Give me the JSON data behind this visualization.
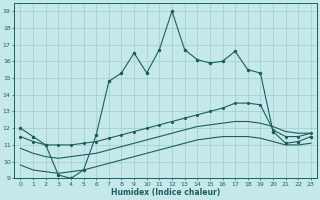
{
  "xlabel": "Humidex (Indice chaleur)",
  "xlim": [
    -0.5,
    23.5
  ],
  "ylim": [
    9,
    19.5
  ],
  "yticks": [
    9,
    10,
    11,
    12,
    13,
    14,
    15,
    16,
    17,
    18,
    19
  ],
  "xticks": [
    0,
    1,
    2,
    3,
    4,
    5,
    6,
    7,
    8,
    9,
    10,
    11,
    12,
    13,
    14,
    15,
    16,
    17,
    18,
    19,
    20,
    21,
    22,
    23
  ],
  "bg_color": "#c5e8e8",
  "grid_color": "#9dcece",
  "line_color": "#1a5f5f",
  "line1_x": [
    0,
    1,
    2,
    3,
    4,
    5,
    6,
    7,
    8,
    9,
    10,
    11,
    12,
    13,
    14,
    15,
    16,
    17,
    18,
    19,
    20,
    21,
    22,
    23
  ],
  "line1_y": [
    12.0,
    11.5,
    11.0,
    9.2,
    9.0,
    9.5,
    11.6,
    14.8,
    15.3,
    16.5,
    15.3,
    16.7,
    19.0,
    16.7,
    16.1,
    15.9,
    16.0,
    16.6,
    15.5,
    15.3,
    11.8,
    11.1,
    11.2,
    11.5
  ],
  "line2_x": [
    0,
    1,
    2,
    3,
    4,
    5,
    6,
    7,
    8,
    9,
    10,
    11,
    12,
    13,
    14,
    15,
    16,
    17,
    18,
    19,
    20,
    21,
    22,
    23
  ],
  "line2_y": [
    11.5,
    11.2,
    11.0,
    11.0,
    11.0,
    11.1,
    11.2,
    11.4,
    11.6,
    11.8,
    12.0,
    12.2,
    12.4,
    12.6,
    12.8,
    13.0,
    13.2,
    13.5,
    13.5,
    13.4,
    11.9,
    11.5,
    11.5,
    11.7
  ],
  "line3_x": [
    0,
    1,
    2,
    3,
    4,
    5,
    6,
    7,
    8,
    9,
    10,
    11,
    12,
    13,
    14,
    15,
    16,
    17,
    18,
    19,
    20,
    21,
    22,
    23
  ],
  "line3_y": [
    10.8,
    10.5,
    10.3,
    10.2,
    10.3,
    10.4,
    10.5,
    10.7,
    10.9,
    11.1,
    11.3,
    11.5,
    11.7,
    11.9,
    12.1,
    12.2,
    12.3,
    12.4,
    12.4,
    12.3,
    12.1,
    11.8,
    11.7,
    11.7
  ],
  "line4_x": [
    0,
    1,
    2,
    3,
    4,
    5,
    6,
    7,
    8,
    9,
    10,
    11,
    12,
    13,
    14,
    15,
    16,
    17,
    18,
    19,
    20,
    21,
    22,
    23
  ],
  "line4_y": [
    9.8,
    9.5,
    9.4,
    9.3,
    9.4,
    9.5,
    9.7,
    9.9,
    10.1,
    10.3,
    10.5,
    10.7,
    10.9,
    11.1,
    11.3,
    11.4,
    11.5,
    11.5,
    11.5,
    11.4,
    11.2,
    11.0,
    11.0,
    11.1
  ]
}
